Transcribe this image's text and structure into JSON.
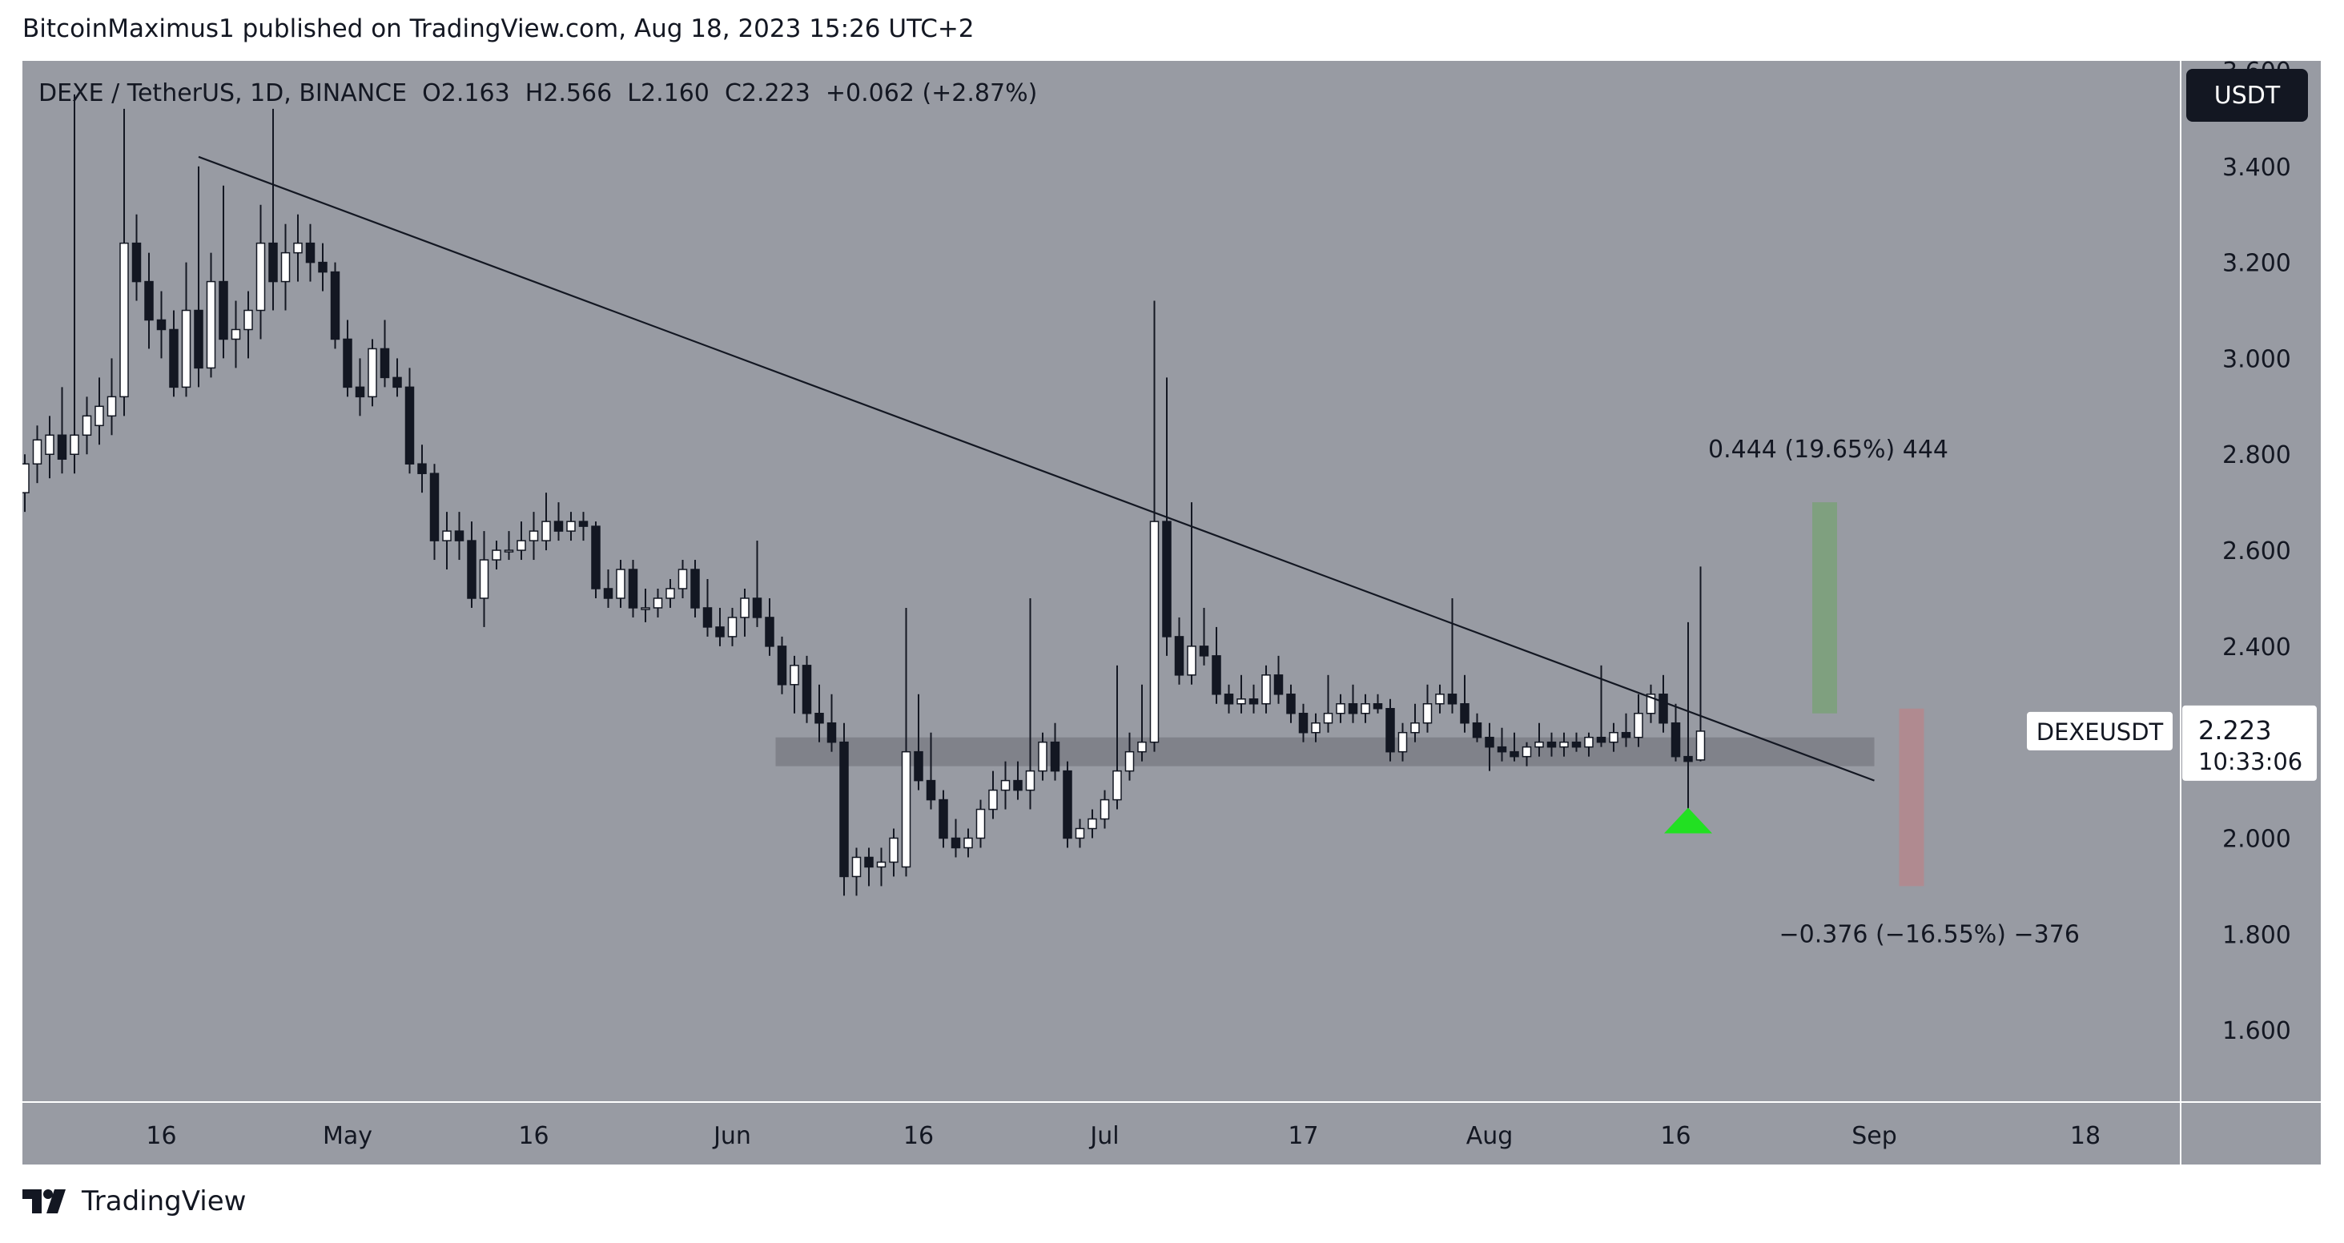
{
  "header": {
    "publish_line": "BitcoinMaximus1 published on TradingView.com, Aug 18, 2023 15:26 UTC+2"
  },
  "legend": {
    "symbol": "DEXE / TetherUS, 1D, BINANCE",
    "open_label": "O",
    "open": "2.163",
    "high_label": "H",
    "high": "2.566",
    "low_label": "L",
    "low": "2.160",
    "close_label": "C",
    "close": "2.223",
    "change": "+0.062 (+2.87%)"
  },
  "currency_button": "USDT",
  "price_tag": {
    "symbol": "DEXEUSDT",
    "price": "2.223",
    "countdown": "10:33:06"
  },
  "annotations": {
    "upper_target": "0.444 (19.65%) 444",
    "lower_target": "−0.376 (−16.55%) −376"
  },
  "footer": {
    "brand": "TradingView"
  },
  "colors": {
    "background": "#989ba3",
    "bull_body": "#ffffff",
    "bear_body": "#131722",
    "trendline": "#131722",
    "support_zone": "#7b7e86",
    "target_green": "#7fa07f",
    "target_red": "#b08a90",
    "marker": "#22e022"
  },
  "chart_data": {
    "type": "candlestick",
    "symbol": "DEXEUSDT",
    "interval": "1D",
    "exchange": "BINANCE",
    "yaxis": {
      "range": [
        1.45,
        3.62
      ],
      "ticks": [
        1.6,
        1.8,
        2.0,
        2.2,
        2.4,
        2.6,
        2.8,
        3.0,
        3.2,
        3.4,
        3.6
      ],
      "tick_labels": [
        "1.600",
        "1.800",
        "2.000",
        "2.200",
        "2.400",
        "2.600",
        "2.800",
        "3.000",
        "3.200",
        "3.400",
        "3.600"
      ]
    },
    "xaxis": {
      "start_date": "2023-04-05",
      "end_date": "2023-09-26",
      "tick_labels": [
        {
          "date": "2023-04-16",
          "label": "16"
        },
        {
          "date": "2023-05-01",
          "label": "May"
        },
        {
          "date": "2023-05-16",
          "label": "16"
        },
        {
          "date": "2023-06-01",
          "label": "Jun"
        },
        {
          "date": "2023-06-16",
          "label": "16"
        },
        {
          "date": "2023-07-01",
          "label": "Jul"
        },
        {
          "date": "2023-07-17",
          "label": "17"
        },
        {
          "date": "2023-08-01",
          "label": "Aug"
        },
        {
          "date": "2023-08-16",
          "label": "16"
        },
        {
          "date": "2023-09-01",
          "label": "Sep"
        },
        {
          "date": "2023-09-18",
          "label": "18"
        }
      ]
    },
    "candles": [
      {
        "date": "2023-04-05",
        "o": 2.72,
        "h": 2.8,
        "l": 2.68,
        "c": 2.78
      },
      {
        "date": "2023-04-06",
        "o": 2.78,
        "h": 2.86,
        "l": 2.74,
        "c": 2.83
      },
      {
        "date": "2023-04-07",
        "o": 2.8,
        "h": 2.88,
        "l": 2.75,
        "c": 2.84
      },
      {
        "date": "2023-04-08",
        "o": 2.84,
        "h": 2.94,
        "l": 2.76,
        "c": 2.79
      },
      {
        "date": "2023-04-09",
        "o": 2.8,
        "h": 3.55,
        "l": 2.76,
        "c": 2.84
      },
      {
        "date": "2023-04-10",
        "o": 2.84,
        "h": 2.92,
        "l": 2.8,
        "c": 2.88
      },
      {
        "date": "2023-04-11",
        "o": 2.86,
        "h": 2.96,
        "l": 2.82,
        "c": 2.9
      },
      {
        "date": "2023-04-12",
        "o": 2.88,
        "h": 3.0,
        "l": 2.84,
        "c": 2.92
      },
      {
        "date": "2023-04-13",
        "o": 2.92,
        "h": 3.52,
        "l": 2.88,
        "c": 3.24
      },
      {
        "date": "2023-04-14",
        "o": 3.24,
        "h": 3.3,
        "l": 3.12,
        "c": 3.16
      },
      {
        "date": "2023-04-15",
        "o": 3.16,
        "h": 3.22,
        "l": 3.02,
        "c": 3.08
      },
      {
        "date": "2023-04-16",
        "o": 3.08,
        "h": 3.14,
        "l": 3.0,
        "c": 3.06
      },
      {
        "date": "2023-04-17",
        "o": 3.06,
        "h": 3.1,
        "l": 2.92,
        "c": 2.94
      },
      {
        "date": "2023-04-18",
        "o": 2.94,
        "h": 3.2,
        "l": 2.92,
        "c": 3.1
      },
      {
        "date": "2023-04-19",
        "o": 3.1,
        "h": 3.4,
        "l": 2.94,
        "c": 2.98
      },
      {
        "date": "2023-04-20",
        "o": 2.98,
        "h": 3.22,
        "l": 2.96,
        "c": 3.16
      },
      {
        "date": "2023-04-21",
        "o": 3.16,
        "h": 3.36,
        "l": 3.0,
        "c": 3.04
      },
      {
        "date": "2023-04-22",
        "o": 3.04,
        "h": 3.12,
        "l": 2.98,
        "c": 3.06
      },
      {
        "date": "2023-04-23",
        "o": 3.06,
        "h": 3.14,
        "l": 3.0,
        "c": 3.1
      },
      {
        "date": "2023-04-24",
        "o": 3.1,
        "h": 3.32,
        "l": 3.04,
        "c": 3.24
      },
      {
        "date": "2023-04-25",
        "o": 3.24,
        "h": 3.52,
        "l": 3.1,
        "c": 3.16
      },
      {
        "date": "2023-04-26",
        "o": 3.16,
        "h": 3.28,
        "l": 3.1,
        "c": 3.22
      },
      {
        "date": "2023-04-27",
        "o": 3.22,
        "h": 3.3,
        "l": 3.16,
        "c": 3.24
      },
      {
        "date": "2023-04-28",
        "o": 3.24,
        "h": 3.28,
        "l": 3.16,
        "c": 3.2
      },
      {
        "date": "2023-04-29",
        "o": 3.2,
        "h": 3.24,
        "l": 3.14,
        "c": 3.18
      },
      {
        "date": "2023-04-30",
        "o": 3.18,
        "h": 3.2,
        "l": 3.02,
        "c": 3.04
      },
      {
        "date": "2023-05-01",
        "o": 3.04,
        "h": 3.08,
        "l": 2.92,
        "c": 2.94
      },
      {
        "date": "2023-05-02",
        "o": 2.94,
        "h": 3.0,
        "l": 2.88,
        "c": 2.92
      },
      {
        "date": "2023-05-03",
        "o": 2.92,
        "h": 3.04,
        "l": 2.9,
        "c": 3.02
      },
      {
        "date": "2023-05-04",
        "o": 3.02,
        "h": 3.08,
        "l": 2.94,
        "c": 2.96
      },
      {
        "date": "2023-05-05",
        "o": 2.96,
        "h": 3.0,
        "l": 2.92,
        "c": 2.94
      },
      {
        "date": "2023-05-06",
        "o": 2.94,
        "h": 2.98,
        "l": 2.76,
        "c": 2.78
      },
      {
        "date": "2023-05-07",
        "o": 2.78,
        "h": 2.82,
        "l": 2.72,
        "c": 2.76
      },
      {
        "date": "2023-05-08",
        "o": 2.76,
        "h": 2.78,
        "l": 2.58,
        "c": 2.62
      },
      {
        "date": "2023-05-09",
        "o": 2.62,
        "h": 2.68,
        "l": 2.56,
        "c": 2.64
      },
      {
        "date": "2023-05-10",
        "o": 2.64,
        "h": 2.68,
        "l": 2.58,
        "c": 2.62
      },
      {
        "date": "2023-05-11",
        "o": 2.62,
        "h": 2.66,
        "l": 2.48,
        "c": 2.5
      },
      {
        "date": "2023-05-12",
        "o": 2.5,
        "h": 2.64,
        "l": 2.44,
        "c": 2.58
      },
      {
        "date": "2023-05-13",
        "o": 2.58,
        "h": 2.62,
        "l": 2.56,
        "c": 2.6
      },
      {
        "date": "2023-05-14",
        "o": 2.6,
        "h": 2.64,
        "l": 2.58,
        "c": 2.6
      },
      {
        "date": "2023-05-15",
        "o": 2.6,
        "h": 2.66,
        "l": 2.58,
        "c": 2.62
      },
      {
        "date": "2023-05-16",
        "o": 2.62,
        "h": 2.68,
        "l": 2.58,
        "c": 2.64
      },
      {
        "date": "2023-05-17",
        "o": 2.62,
        "h": 2.72,
        "l": 2.6,
        "c": 2.66
      },
      {
        "date": "2023-05-18",
        "o": 2.66,
        "h": 2.7,
        "l": 2.62,
        "c": 2.64
      },
      {
        "date": "2023-05-19",
        "o": 2.64,
        "h": 2.68,
        "l": 2.62,
        "c": 2.66
      },
      {
        "date": "2023-05-20",
        "o": 2.66,
        "h": 2.68,
        "l": 2.62,
        "c": 2.65
      },
      {
        "date": "2023-05-21",
        "o": 2.65,
        "h": 2.66,
        "l": 2.5,
        "c": 2.52
      },
      {
        "date": "2023-05-22",
        "o": 2.52,
        "h": 2.56,
        "l": 2.48,
        "c": 2.5
      },
      {
        "date": "2023-05-23",
        "o": 2.5,
        "h": 2.58,
        "l": 2.48,
        "c": 2.56
      },
      {
        "date": "2023-05-24",
        "o": 2.56,
        "h": 2.58,
        "l": 2.46,
        "c": 2.48
      },
      {
        "date": "2023-05-25",
        "o": 2.48,
        "h": 2.52,
        "l": 2.45,
        "c": 2.48
      },
      {
        "date": "2023-05-26",
        "o": 2.48,
        "h": 2.52,
        "l": 2.46,
        "c": 2.5
      },
      {
        "date": "2023-05-27",
        "o": 2.5,
        "h": 2.54,
        "l": 2.48,
        "c": 2.52
      },
      {
        "date": "2023-05-28",
        "o": 2.52,
        "h": 2.58,
        "l": 2.5,
        "c": 2.56
      },
      {
        "date": "2023-05-29",
        "o": 2.56,
        "h": 2.58,
        "l": 2.46,
        "c": 2.48
      },
      {
        "date": "2023-05-30",
        "o": 2.48,
        "h": 2.54,
        "l": 2.42,
        "c": 2.44
      },
      {
        "date": "2023-05-31",
        "o": 2.44,
        "h": 2.48,
        "l": 2.4,
        "c": 2.42
      },
      {
        "date": "2023-06-01",
        "o": 2.42,
        "h": 2.48,
        "l": 2.4,
        "c": 2.46
      },
      {
        "date": "2023-06-02",
        "o": 2.46,
        "h": 2.52,
        "l": 2.42,
        "c": 2.5
      },
      {
        "date": "2023-06-03",
        "o": 2.5,
        "h": 2.62,
        "l": 2.44,
        "c": 2.46
      },
      {
        "date": "2023-06-04",
        "o": 2.46,
        "h": 2.5,
        "l": 2.38,
        "c": 2.4
      },
      {
        "date": "2023-06-05",
        "o": 2.4,
        "h": 2.42,
        "l": 2.3,
        "c": 2.32
      },
      {
        "date": "2023-06-06",
        "o": 2.32,
        "h": 2.38,
        "l": 2.26,
        "c": 2.36
      },
      {
        "date": "2023-06-07",
        "o": 2.36,
        "h": 2.38,
        "l": 2.24,
        "c": 2.26
      },
      {
        "date": "2023-06-08",
        "o": 2.26,
        "h": 2.32,
        "l": 2.2,
        "c": 2.24
      },
      {
        "date": "2023-06-09",
        "o": 2.24,
        "h": 2.3,
        "l": 2.18,
        "c": 2.2
      },
      {
        "date": "2023-06-10",
        "o": 2.2,
        "h": 2.24,
        "l": 1.88,
        "c": 1.92
      },
      {
        "date": "2023-06-11",
        "o": 1.92,
        "h": 1.98,
        "l": 1.88,
        "c": 1.96
      },
      {
        "date": "2023-06-12",
        "o": 1.96,
        "h": 1.98,
        "l": 1.9,
        "c": 1.94
      },
      {
        "date": "2023-06-13",
        "o": 1.94,
        "h": 1.98,
        "l": 1.9,
        "c": 1.95
      },
      {
        "date": "2023-06-14",
        "o": 1.95,
        "h": 2.02,
        "l": 1.92,
        "c": 2.0
      },
      {
        "date": "2023-06-15",
        "o": 1.94,
        "h": 2.48,
        "l": 1.92,
        "c": 2.18
      },
      {
        "date": "2023-06-16",
        "o": 2.18,
        "h": 2.3,
        "l": 2.1,
        "c": 2.12
      },
      {
        "date": "2023-06-17",
        "o": 2.12,
        "h": 2.22,
        "l": 2.06,
        "c": 2.08
      },
      {
        "date": "2023-06-18",
        "o": 2.08,
        "h": 2.1,
        "l": 1.98,
        "c": 2.0
      },
      {
        "date": "2023-06-19",
        "o": 2.0,
        "h": 2.04,
        "l": 1.96,
        "c": 1.98
      },
      {
        "date": "2023-06-20",
        "o": 1.98,
        "h": 2.02,
        "l": 1.96,
        "c": 2.0
      },
      {
        "date": "2023-06-21",
        "o": 2.0,
        "h": 2.08,
        "l": 1.98,
        "c": 2.06
      },
      {
        "date": "2023-06-22",
        "o": 2.06,
        "h": 2.14,
        "l": 2.04,
        "c": 2.1
      },
      {
        "date": "2023-06-23",
        "o": 2.1,
        "h": 2.16,
        "l": 2.06,
        "c": 2.12
      },
      {
        "date": "2023-06-24",
        "o": 2.12,
        "h": 2.16,
        "l": 2.08,
        "c": 2.1
      },
      {
        "date": "2023-06-25",
        "o": 2.1,
        "h": 2.5,
        "l": 2.06,
        "c": 2.14
      },
      {
        "date": "2023-06-26",
        "o": 2.14,
        "h": 2.22,
        "l": 2.12,
        "c": 2.2
      },
      {
        "date": "2023-06-27",
        "o": 2.2,
        "h": 2.24,
        "l": 2.12,
        "c": 2.14
      },
      {
        "date": "2023-06-28",
        "o": 2.14,
        "h": 2.16,
        "l": 1.98,
        "c": 2.0
      },
      {
        "date": "2023-06-29",
        "o": 2.0,
        "h": 2.04,
        "l": 1.98,
        "c": 2.02
      },
      {
        "date": "2023-06-30",
        "o": 2.02,
        "h": 2.06,
        "l": 2.0,
        "c": 2.04
      },
      {
        "date": "2023-07-01",
        "o": 2.04,
        "h": 2.1,
        "l": 2.02,
        "c": 2.08
      },
      {
        "date": "2023-07-02",
        "o": 2.08,
        "h": 2.36,
        "l": 2.06,
        "c": 2.14
      },
      {
        "date": "2023-07-03",
        "o": 2.14,
        "h": 2.22,
        "l": 2.12,
        "c": 2.18
      },
      {
        "date": "2023-07-04",
        "o": 2.18,
        "h": 2.32,
        "l": 2.16,
        "c": 2.2
      },
      {
        "date": "2023-07-05",
        "o": 2.2,
        "h": 3.12,
        "l": 2.18,
        "c": 2.66
      },
      {
        "date": "2023-07-06",
        "o": 2.66,
        "h": 2.96,
        "l": 2.38,
        "c": 2.42
      },
      {
        "date": "2023-07-07",
        "o": 2.42,
        "h": 2.46,
        "l": 2.32,
        "c": 2.34
      },
      {
        "date": "2023-07-08",
        "o": 2.34,
        "h": 2.7,
        "l": 2.32,
        "c": 2.4
      },
      {
        "date": "2023-07-09",
        "o": 2.4,
        "h": 2.48,
        "l": 2.36,
        "c": 2.38
      },
      {
        "date": "2023-07-10",
        "o": 2.38,
        "h": 2.44,
        "l": 2.28,
        "c": 2.3
      },
      {
        "date": "2023-07-11",
        "o": 2.3,
        "h": 2.32,
        "l": 2.26,
        "c": 2.28
      },
      {
        "date": "2023-07-12",
        "o": 2.28,
        "h": 2.34,
        "l": 2.26,
        "c": 2.29
      },
      {
        "date": "2023-07-13",
        "o": 2.29,
        "h": 2.32,
        "l": 2.26,
        "c": 2.28
      },
      {
        "date": "2023-07-14",
        "o": 2.28,
        "h": 2.36,
        "l": 2.26,
        "c": 2.34
      },
      {
        "date": "2023-07-15",
        "o": 2.34,
        "h": 2.38,
        "l": 2.28,
        "c": 2.3
      },
      {
        "date": "2023-07-16",
        "o": 2.3,
        "h": 2.32,
        "l": 2.24,
        "c": 2.26
      },
      {
        "date": "2023-07-17",
        "o": 2.26,
        "h": 2.28,
        "l": 2.2,
        "c": 2.22
      },
      {
        "date": "2023-07-18",
        "o": 2.22,
        "h": 2.26,
        "l": 2.2,
        "c": 2.24
      },
      {
        "date": "2023-07-19",
        "o": 2.24,
        "h": 2.34,
        "l": 2.22,
        "c": 2.26
      },
      {
        "date": "2023-07-20",
        "o": 2.26,
        "h": 2.3,
        "l": 2.24,
        "c": 2.28
      },
      {
        "date": "2023-07-21",
        "o": 2.28,
        "h": 2.32,
        "l": 2.24,
        "c": 2.26
      },
      {
        "date": "2023-07-22",
        "o": 2.26,
        "h": 2.3,
        "l": 2.24,
        "c": 2.28
      },
      {
        "date": "2023-07-23",
        "o": 2.28,
        "h": 2.3,
        "l": 2.26,
        "c": 2.27
      },
      {
        "date": "2023-07-24",
        "o": 2.27,
        "h": 2.29,
        "l": 2.16,
        "c": 2.18
      },
      {
        "date": "2023-07-25",
        "o": 2.18,
        "h": 2.24,
        "l": 2.16,
        "c": 2.22
      },
      {
        "date": "2023-07-26",
        "o": 2.22,
        "h": 2.28,
        "l": 2.2,
        "c": 2.24
      },
      {
        "date": "2023-07-27",
        "o": 2.24,
        "h": 2.32,
        "l": 2.22,
        "c": 2.28
      },
      {
        "date": "2023-07-28",
        "o": 2.28,
        "h": 2.32,
        "l": 2.26,
        "c": 2.3
      },
      {
        "date": "2023-07-29",
        "o": 2.3,
        "h": 2.5,
        "l": 2.26,
        "c": 2.28
      },
      {
        "date": "2023-07-30",
        "o": 2.28,
        "h": 2.34,
        "l": 2.22,
        "c": 2.24
      },
      {
        "date": "2023-07-31",
        "o": 2.24,
        "h": 2.26,
        "l": 2.2,
        "c": 2.21
      },
      {
        "date": "2023-08-01",
        "o": 2.21,
        "h": 2.24,
        "l": 2.14,
        "c": 2.19
      },
      {
        "date": "2023-08-02",
        "o": 2.19,
        "h": 2.23,
        "l": 2.16,
        "c": 2.18
      },
      {
        "date": "2023-08-03",
        "o": 2.18,
        "h": 2.22,
        "l": 2.16,
        "c": 2.17
      },
      {
        "date": "2023-08-04",
        "o": 2.17,
        "h": 2.2,
        "l": 2.15,
        "c": 2.19
      },
      {
        "date": "2023-08-05",
        "o": 2.19,
        "h": 2.24,
        "l": 2.17,
        "c": 2.2
      },
      {
        "date": "2023-08-06",
        "o": 2.2,
        "h": 2.22,
        "l": 2.17,
        "c": 2.19
      },
      {
        "date": "2023-08-07",
        "o": 2.19,
        "h": 2.22,
        "l": 2.17,
        "c": 2.2
      },
      {
        "date": "2023-08-08",
        "o": 2.2,
        "h": 2.22,
        "l": 2.18,
        "c": 2.19
      },
      {
        "date": "2023-08-09",
        "o": 2.19,
        "h": 2.22,
        "l": 2.17,
        "c": 2.21
      },
      {
        "date": "2023-08-10",
        "o": 2.21,
        "h": 2.36,
        "l": 2.19,
        "c": 2.2
      },
      {
        "date": "2023-08-11",
        "o": 2.2,
        "h": 2.24,
        "l": 2.18,
        "c": 2.22
      },
      {
        "date": "2023-08-12",
        "o": 2.22,
        "h": 2.26,
        "l": 2.19,
        "c": 2.21
      },
      {
        "date": "2023-08-13",
        "o": 2.21,
        "h": 2.3,
        "l": 2.19,
        "c": 2.26
      },
      {
        "date": "2023-08-14",
        "o": 2.26,
        "h": 2.32,
        "l": 2.24,
        "c": 2.3
      },
      {
        "date": "2023-08-15",
        "o": 2.3,
        "h": 2.34,
        "l": 2.22,
        "c": 2.24
      },
      {
        "date": "2023-08-16",
        "o": 2.24,
        "h": 2.28,
        "l": 2.16,
        "c": 2.17
      },
      {
        "date": "2023-08-17",
        "o": 2.17,
        "h": 2.45,
        "l": 2.04,
        "c": 2.16
      },
      {
        "date": "2023-08-18",
        "o": 2.163,
        "h": 2.566,
        "l": 2.16,
        "c": 2.223
      }
    ],
    "trendline": {
      "start": [
        "2023-04-19",
        3.42
      ],
      "end": [
        "2023-09-01",
        2.12
      ]
    },
    "support_zone": {
      "from": "2023-06-05",
      "to": "2023-09-01",
      "low": 2.15,
      "high": 2.21
    },
    "target_boxes": [
      {
        "name": "upper",
        "date_from": "2023-08-27",
        "date_to": "2023-08-28",
        "low": 2.26,
        "high": 2.7
      },
      {
        "name": "lower",
        "date_from": "2023-09-03",
        "date_to": "2023-09-04",
        "low": 1.9,
        "high": 2.27
      }
    ],
    "marker": {
      "type": "triangle-up",
      "date": "2023-08-17",
      "price": 2.01
    },
    "last_price": 2.223
  }
}
